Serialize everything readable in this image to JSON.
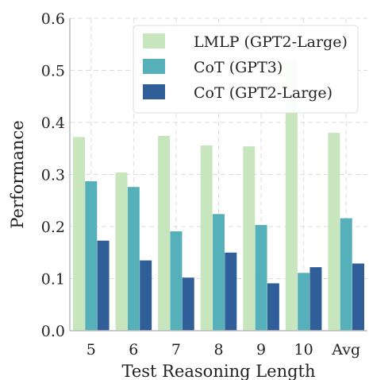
{
  "chart_data": {
    "type": "bar",
    "xlabel": "Test Reasoning Length",
    "ylabel": "Performance",
    "ylim": [
      0,
      0.6
    ],
    "yticks": [
      "0.0",
      "0.1",
      "0.2",
      "0.3",
      "0.4",
      "0.5",
      "0.6"
    ],
    "grid": true,
    "legend_position": "top-right",
    "categories": [
      "5",
      "6",
      "7",
      "8",
      "9",
      "10",
      "Avg"
    ],
    "series": [
      {
        "name": "LMLP (GPT2-Large)",
        "color": "#c7e6bd",
        "values": [
          0.372,
          0.304,
          0.374,
          0.356,
          0.354,
          0.52,
          0.38
        ]
      },
      {
        "name": "CoT (GPT3)",
        "color": "#55b0ba",
        "values": [
          0.287,
          0.276,
          0.191,
          0.224,
          0.203,
          0.111,
          0.216
        ]
      },
      {
        "name": "CoT (GPT2-Large)",
        "color": "#2f5e98",
        "values": [
          0.173,
          0.135,
          0.102,
          0.15,
          0.091,
          0.122,
          0.129
        ]
      }
    ]
  }
}
